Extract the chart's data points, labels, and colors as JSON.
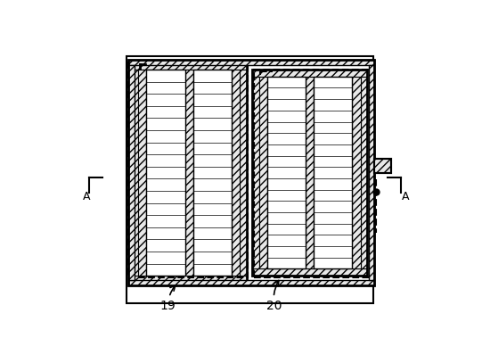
{
  "fig_width": 5.41,
  "fig_height": 4.07,
  "bg_color": "#ffffff",
  "label_19": "19",
  "label_20": "20",
  "label_A": "A",
  "hatch_fc": "#e8e8e8",
  "cell_fc": "#ffffff",
  "n_rows": 17
}
